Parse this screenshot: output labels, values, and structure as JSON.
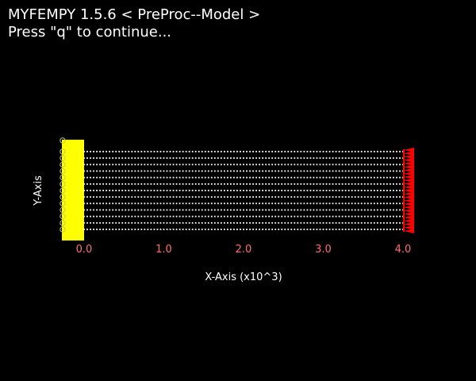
{
  "window": {
    "title": "MYFEMPY 1.5.6 < PreProc--Model >",
    "prompt": "Press \"q\" to continue..."
  },
  "colors": {
    "background": "#000000",
    "text": "#ffffff",
    "tick_label": "#ff7070",
    "mesh_node": "#ffffff",
    "fixed_support": "#ffff00",
    "support_symbol": "#c8c860",
    "load_arrow": "#ff0000"
  },
  "icons": {
    "fixed_support": "fixed-support-block-icon",
    "support_symbol": "support-circle-icon",
    "load_arrow": "load-arrow-icon"
  },
  "chart_data": {
    "type": "scatter",
    "xlabel": "X-Axis (x10^3)",
    "ylabel": "Y-Axis",
    "xlim": [
      -0.3,
      4.2
    ],
    "ylim": [
      -0.15,
      1.15
    ],
    "x_ticks": [
      0.0,
      1.0,
      2.0,
      3.0,
      4.0
    ],
    "x_tick_labels": [
      "0.0",
      "1.0",
      "2.0",
      "3.0",
      "4.0"
    ],
    "mesh": {
      "x_start": 0.0,
      "x_end": 4.0,
      "y_start": 0.0,
      "y_end": 1.0,
      "nx": 101,
      "ny": 13
    },
    "grid": false
  }
}
